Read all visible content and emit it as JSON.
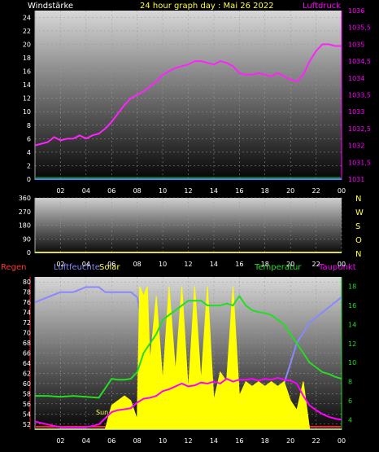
{
  "header": {
    "left": "Windstärke",
    "center": "24 hour graph day : Mai 26 2022",
    "right": "Luftdruck"
  },
  "colors": {
    "background": "#000000",
    "wind_axis": "#ffffff",
    "pressure": "#ff00ff",
    "humidity": "#8888ff",
    "solar": "#ffff00",
    "temperature": "#22dd22",
    "dewpoint": "#ff00ff",
    "rain": "#ff2222",
    "x_axis": "#4488ff"
  },
  "legend": {
    "regen": "Regen",
    "luftfeuchte": "Luftfeuchte",
    "solar": "Solar",
    "temperatur": "Temperatur",
    "taupunkt": "Taupunkt",
    "sun": "Sun"
  },
  "compass": [
    "N",
    "W",
    "S",
    "O",
    "N"
  ],
  "x_ticks": [
    "02",
    "04",
    "06",
    "08",
    "10",
    "12",
    "14",
    "16",
    "18",
    "20",
    "22",
    "00"
  ],
  "chart_data": [
    {
      "type": "line",
      "name": "wind-pressure",
      "y_left_ticks": [
        "0",
        "2",
        "4",
        "6",
        "8",
        "10",
        "12",
        "14",
        "16",
        "18",
        "20",
        "22",
        "24"
      ],
      "y_left_range": [
        0,
        25
      ],
      "y_right_ticks": [
        "1031",
        "1031,5",
        "1032",
        "1032,5",
        "1033",
        "1033,5",
        "1034",
        "1034,5",
        "1035",
        "1035,5",
        "1036"
      ],
      "y_right_range": [
        1031,
        1036
      ],
      "x_range": [
        0,
        24
      ],
      "series": [
        {
          "name": "Luftdruck",
          "axis": "right",
          "x": [
            0,
            0.5,
            1,
            1.5,
            2,
            2.5,
            3,
            3.5,
            4,
            4.5,
            5,
            5.5,
            6,
            6.5,
            7,
            7.5,
            8,
            8.5,
            9,
            9.5,
            10,
            10.5,
            11,
            11.5,
            12,
            12.5,
            13,
            13.5,
            14,
            14.5,
            15,
            15.5,
            16,
            16.5,
            17,
            17.5,
            18,
            18.5,
            19,
            19.5,
            20,
            20.5,
            21,
            21.5,
            22,
            22.5,
            23,
            23.5,
            24
          ],
          "values": [
            1032,
            1032.05,
            1032.1,
            1032.25,
            1032.15,
            1032.2,
            1032.2,
            1032.3,
            1032.2,
            1032.3,
            1032.35,
            1032.5,
            1032.7,
            1032.95,
            1033.2,
            1033.4,
            1033.5,
            1033.6,
            1033.75,
            1033.9,
            1034.1,
            1034.2,
            1034.3,
            1034.35,
            1034.4,
            1034.5,
            1034.5,
            1034.45,
            1034.4,
            1034.5,
            1034.45,
            1034.35,
            1034.15,
            1034.1,
            1034.1,
            1034.15,
            1034.1,
            1034.05,
            1034.15,
            1034.05,
            1033.95,
            1033.9,
            1034.1,
            1034.5,
            1034.8,
            1035,
            1035,
            1034.95,
            1034.95
          ]
        }
      ]
    },
    {
      "type": "line",
      "name": "wind-direction",
      "y_left_ticks": [
        "0",
        "90",
        "180",
        "270",
        "360"
      ],
      "y_left_range": [
        0,
        360
      ],
      "x_range": [
        0,
        24
      ]
    },
    {
      "type": "area",
      "name": "humidity-solar-temp-dew",
      "y_left_ticks": [
        "52",
        "54",
        "56",
        "58",
        "60",
        "62",
        "64",
        "66",
        "68",
        "70",
        "72",
        "74",
        "76",
        "78",
        "80"
      ],
      "y_left_range": [
        51,
        81
      ],
      "y_right_ticks": [
        "4",
        "6",
        "8",
        "10",
        "12",
        "14",
        "16",
        "18"
      ],
      "y_right_range": [
        3,
        19
      ],
      "x_range": [
        0,
        24
      ],
      "series": [
        {
          "name": "Luftfeuchte",
          "axis": "left",
          "x": [
            0,
            1,
            2,
            3,
            4,
            5,
            5.5,
            6,
            6.5,
            7,
            7.5,
            8,
            8.5,
            9,
            9.5,
            10,
            10.5,
            11,
            11.5,
            12,
            12.5,
            13,
            13.5,
            14,
            14.5,
            15,
            15.5,
            16,
            16.5,
            17,
            17.5,
            18,
            18.5,
            19,
            19.5,
            20,
            20.5,
            21,
            21.5,
            22,
            22.5,
            23,
            23.5,
            24
          ],
          "values": [
            76,
            77,
            78,
            78,
            79,
            79,
            78,
            78,
            78,
            78,
            78,
            77,
            70,
            62,
            58,
            56,
            58,
            55,
            57,
            56,
            58,
            55,
            58,
            56,
            57,
            54,
            58,
            56,
            57,
            58,
            58,
            58,
            59,
            58,
            60,
            64,
            68,
            70,
            72,
            73,
            74,
            75,
            76,
            77
          ]
        },
        {
          "name": "Solar",
          "axis": "right",
          "x": [
            0,
            5.5,
            6,
            6.5,
            7,
            7.5,
            8,
            8.2,
            8.5,
            8.8,
            9,
            9.5,
            10,
            10.5,
            11,
            11.5,
            12,
            12.5,
            13,
            13.5,
            14,
            14.5,
            15,
            15.5,
            16,
            16.5,
            17,
            17.5,
            18,
            18.5,
            19,
            19.5,
            20,
            20.5,
            21,
            21.5,
            24
          ],
          "values": [
            3,
            3,
            5.5,
            6,
            6.5,
            6,
            4,
            18,
            17,
            18,
            10,
            17,
            8,
            18,
            9,
            18,
            7,
            18,
            8,
            18,
            6,
            9,
            8,
            18,
            6.5,
            8,
            7.5,
            8,
            7.5,
            8,
            7.5,
            8,
            6,
            5,
            8,
            3,
            3
          ]
        },
        {
          "name": "Temperatur",
          "axis": "right",
          "x": [
            0,
            1,
            2,
            3,
            4,
            5,
            6,
            6.5,
            7,
            7.5,
            8,
            8.5,
            9,
            9.5,
            10,
            10.5,
            11,
            11.5,
            12,
            12.5,
            13,
            13.5,
            14,
            14.5,
            15,
            15.5,
            16,
            16.5,
            17,
            17.5,
            18,
            18.5,
            19,
            19.5,
            20,
            20.5,
            21,
            21.5,
            22,
            22.5,
            23,
            23.5,
            24
          ],
          "values": [
            6.5,
            6.5,
            6.4,
            6.5,
            6.4,
            6.3,
            8.3,
            8.2,
            8.2,
            8.3,
            9,
            11,
            12,
            13,
            14.5,
            15,
            15.5,
            16,
            16.5,
            16.5,
            16.5,
            16,
            16,
            16,
            16.2,
            16,
            17,
            16,
            15.5,
            15.3,
            15.2,
            15,
            14.5,
            14,
            13,
            12,
            11,
            10,
            9.5,
            9,
            8.8,
            8.5,
            8.3
          ]
        },
        {
          "name": "Taupunkt",
          "axis": "right",
          "x": [
            0,
            1,
            2,
            3,
            4,
            5,
            6,
            6.5,
            7,
            7.5,
            8,
            8.5,
            9,
            9.5,
            10,
            10.5,
            11,
            11.5,
            12,
            12.5,
            13,
            13.5,
            14,
            14.5,
            15,
            15.5,
            16,
            16.5,
            17,
            17.5,
            18,
            18.5,
            19,
            19.5,
            20,
            20.5,
            21,
            21.5,
            22,
            22.5,
            23,
            23.5,
            24
          ],
          "values": [
            3.8,
            3.5,
            3.2,
            3.2,
            3.2,
            3.5,
            4.8,
            5,
            5.1,
            5.2,
            5.8,
            6.2,
            6.3,
            6.5,
            7,
            7.2,
            7.5,
            7.8,
            7.5,
            7.6,
            7.9,
            7.8,
            8,
            7.8,
            8.3,
            8,
            8.2,
            8.2,
            8.3,
            8.1,
            8.3,
            8.2,
            8.4,
            8.2,
            8.1,
            7.8,
            6.5,
            5.5,
            5,
            4.6,
            4.3,
            4.1,
            4
          ]
        }
      ]
    }
  ]
}
